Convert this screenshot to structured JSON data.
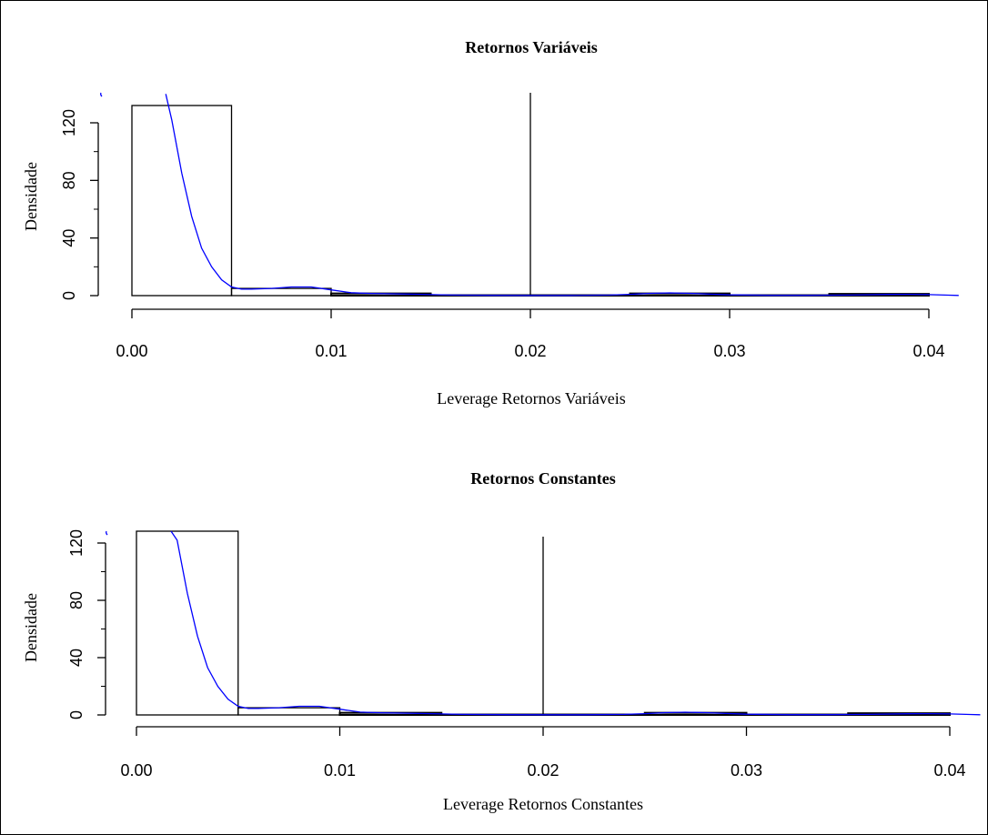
{
  "chart_data": [
    {
      "type": "histogram",
      "title": "Retornos Variáveis",
      "xlabel": "Leverage Retornos Variáveis",
      "ylabel": "Densidade",
      "x_ticks": [
        "0.00",
        "0.01",
        "0.02",
        "0.03",
        "0.04"
      ],
      "y_ticks": [
        "0",
        "40",
        "80",
        "120"
      ],
      "xlim": [
        0.0,
        0.04
      ],
      "ylim": [
        0,
        140
      ],
      "bins": [
        {
          "x0": 0.0,
          "x1": 0.005,
          "density": 132
        },
        {
          "x0": 0.005,
          "x1": 0.01,
          "density": 5
        },
        {
          "x0": 0.01,
          "x1": 0.015,
          "density": 1.5
        },
        {
          "x0": 0.015,
          "x1": 0.02,
          "density": 0.3
        },
        {
          "x0": 0.02,
          "x1": 0.025,
          "density": 0.3
        },
        {
          "x0": 0.025,
          "x1": 0.03,
          "density": 1.5
        },
        {
          "x0": 0.03,
          "x1": 0.035,
          "density": 0.3
        },
        {
          "x0": 0.035,
          "x1": 0.04,
          "density": 1.2
        }
      ],
      "vline_x": 0.02,
      "density_curve": {
        "color": "#0000ff",
        "x": [
          0.0017,
          0.002,
          0.0025,
          0.003,
          0.0035,
          0.004,
          0.0045,
          0.005,
          0.0055,
          0.006,
          0.007,
          0.008,
          0.009,
          0.01,
          0.011,
          0.012,
          0.014,
          0.016,
          0.018,
          0.02,
          0.022,
          0.024,
          0.025,
          0.026,
          0.027,
          0.028,
          0.029,
          0.03,
          0.032,
          0.034,
          0.036,
          0.038,
          0.039,
          0.04,
          0.041,
          0.0415
        ],
        "y": [
          140,
          122,
          85,
          55,
          33,
          20,
          11,
          6,
          4.5,
          4.5,
          5,
          6,
          6,
          4,
          2,
          1.5,
          1,
          0.4,
          0.2,
          0.1,
          0.1,
          0.4,
          0.9,
          1.6,
          1.9,
          1.6,
          1.0,
          0.5,
          0.2,
          0.2,
          0.4,
          0.8,
          0.9,
          0.7,
          0.3,
          0.1
        ]
      }
    },
    {
      "type": "histogram",
      "title": "Retornos Constantes",
      "xlabel": "Leverage Retornos Constantes",
      "ylabel": "Densidade",
      "x_ticks": [
        "0.00",
        "0.01",
        "0.02",
        "0.03",
        "0.04"
      ],
      "y_ticks": [
        "0",
        "40",
        "80",
        "120"
      ],
      "xlim": [
        0.0,
        0.04
      ],
      "ylim": [
        0,
        140
      ],
      "bins": [
        {
          "x0": 0.0,
          "x1": 0.005,
          "density": 132
        },
        {
          "x0": 0.005,
          "x1": 0.01,
          "density": 5
        },
        {
          "x0": 0.01,
          "x1": 0.015,
          "density": 1.5
        },
        {
          "x0": 0.015,
          "x1": 0.02,
          "density": 0.3
        },
        {
          "x0": 0.02,
          "x1": 0.025,
          "density": 0.3
        },
        {
          "x0": 0.025,
          "x1": 0.03,
          "density": 1.5
        },
        {
          "x0": 0.03,
          "x1": 0.035,
          "density": 0.3
        },
        {
          "x0": 0.035,
          "x1": 0.04,
          "density": 1.2
        }
      ],
      "vline_x": 0.02,
      "density_curve": {
        "color": "#0000ff",
        "x": [
          0.0017,
          0.002,
          0.0025,
          0.003,
          0.0035,
          0.004,
          0.0045,
          0.005,
          0.0055,
          0.006,
          0.007,
          0.008,
          0.009,
          0.01,
          0.011,
          0.012,
          0.014,
          0.016,
          0.018,
          0.02,
          0.022,
          0.024,
          0.025,
          0.026,
          0.027,
          0.028,
          0.029,
          0.03,
          0.032,
          0.034,
          0.036,
          0.038,
          0.039,
          0.04,
          0.041,
          0.0415
        ],
        "y": [
          140,
          122,
          85,
          55,
          33,
          20,
          11,
          6,
          4.5,
          4.5,
          5,
          6,
          6,
          4,
          2,
          1.5,
          1,
          0.4,
          0.2,
          0.1,
          0.1,
          0.4,
          0.9,
          1.6,
          1.9,
          1.6,
          1.0,
          0.5,
          0.2,
          0.2,
          0.4,
          0.8,
          0.9,
          0.7,
          0.3,
          0.1
        ]
      }
    }
  ]
}
